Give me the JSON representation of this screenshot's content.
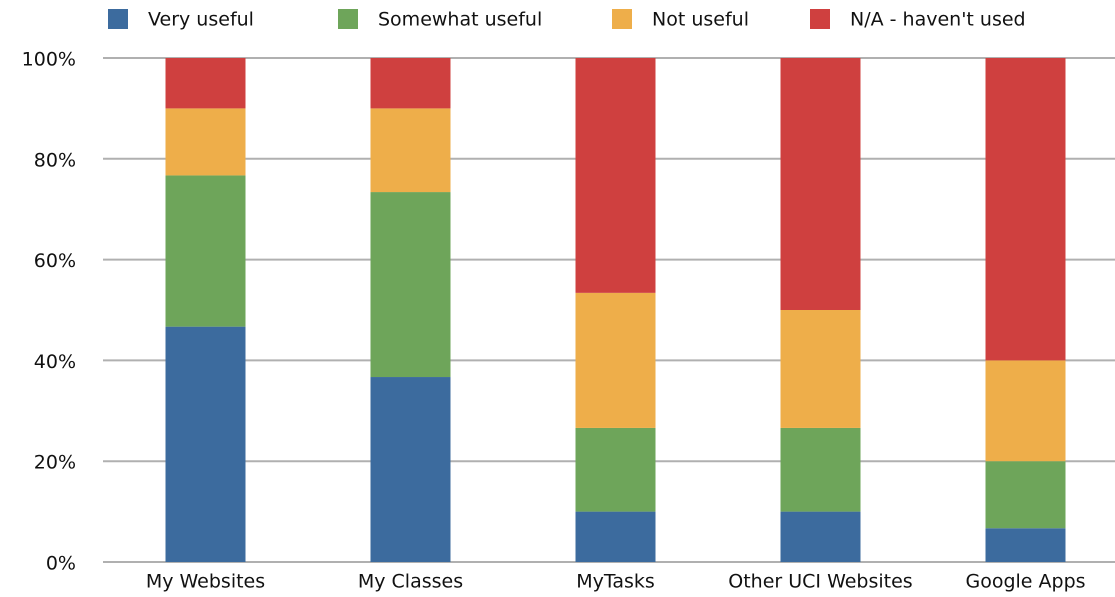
{
  "chart_data": {
    "type": "stacked_bar",
    "categories": [
      "My Websites",
      "My Classes",
      "MyTasks",
      "Other UCI Websites",
      "Google Apps"
    ],
    "series": [
      {
        "name": "Very useful",
        "color": "#3c6b9e",
        "values": [
          46.7,
          36.7,
          10,
          10,
          6.7
        ]
      },
      {
        "name": "Somewhat useful",
        "color": "#6ea55a",
        "values": [
          30,
          36.7,
          16.6,
          16.6,
          13.3
        ]
      },
      {
        "name": "Not useful",
        "color": "#eeae4a",
        "values": [
          13.3,
          16.6,
          26.8,
          23.4,
          20
        ]
      },
      {
        "name": "N/A - haven't used",
        "color": "#cf403f",
        "values": [
          10,
          10,
          46.6,
          50,
          60
        ]
      }
    ],
    "ylim": [
      0,
      100
    ],
    "yticks": [
      {
        "value": 0,
        "label": "0%"
      },
      {
        "value": 20,
        "label": "20%"
      },
      {
        "value": 40,
        "label": "40%"
      },
      {
        "value": 60,
        "label": "60%"
      },
      {
        "value": 80,
        "label": "80%"
      },
      {
        "value": 100,
        "label": "100%"
      }
    ],
    "grid": true,
    "legend": "top"
  }
}
